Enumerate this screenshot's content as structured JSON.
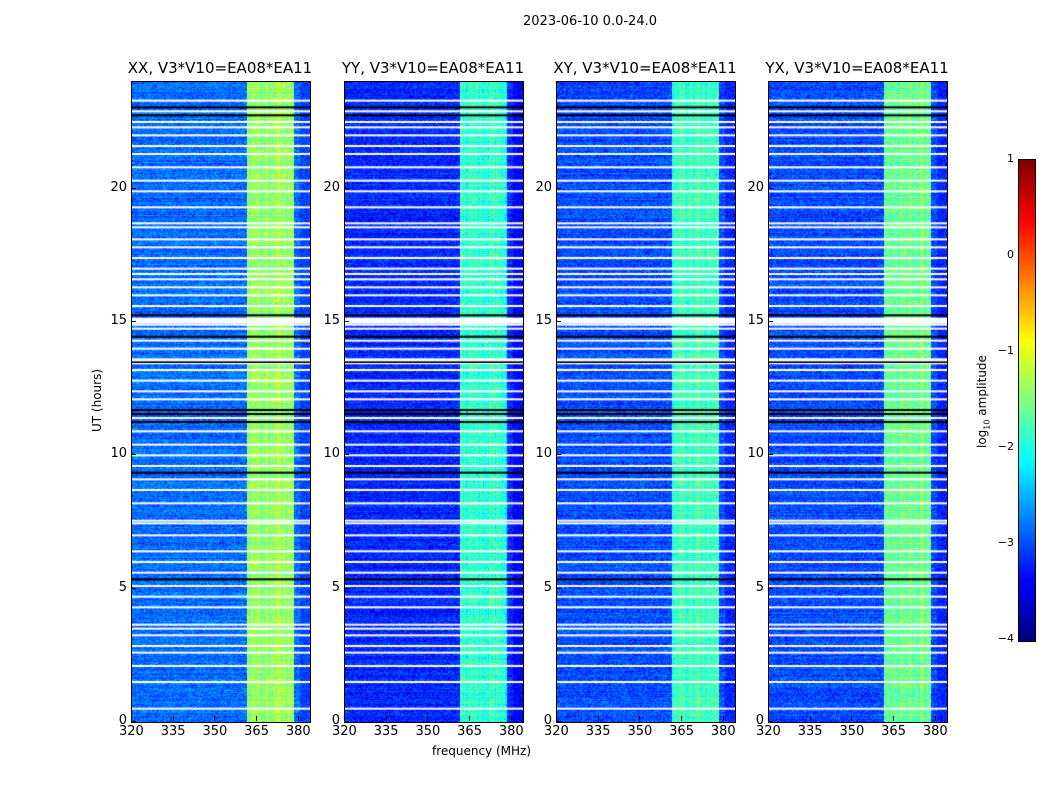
{
  "chart_data": {
    "type": "heatmap",
    "title": "2023-06-10 0.0-24.0",
    "xlabel": "frequency (MHz)",
    "ylabel": "UT (hours)",
    "xlim": [
      320,
      384
    ],
    "ylim": [
      0,
      24
    ],
    "xticks": [
      "320",
      "335",
      "350",
      "365",
      "380"
    ],
    "yticks": [
      "0",
      "5",
      "10",
      "15",
      "20"
    ],
    "panels": [
      {
        "title": "XX, V3*V10=EA08*EA11",
        "base_log": -2.85,
        "band_log": -1.4
      },
      {
        "title": "YY, V3*V10=EA08*EA11",
        "base_log": -3.2,
        "band_log": -1.9
      },
      {
        "title": "XY, V3*V10=EA08*EA11",
        "base_log": -3.0,
        "band_log": -1.8
      },
      {
        "title": "YX, V3*V10=EA08*EA11",
        "base_log": -3.0,
        "band_log": -1.6
      }
    ],
    "band_MHz": [
      361,
      378
    ],
    "flagged_hours_white": [
      0.5,
      1.5,
      2.1,
      2.6,
      2.85,
      3.25,
      3.5,
      3.65,
      4.3,
      4.7,
      5.1,
      5.6,
      6.0,
      6.4,
      7.0,
      7.45,
      7.55,
      8.2,
      8.7,
      9.1,
      9.6,
      10.0,
      10.4,
      10.9,
      11.4,
      12.1,
      12.4,
      12.8,
      13.2,
      13.45,
      14.0,
      14.3,
      14.75,
      14.9,
      15.05,
      15.6,
      16.0,
      16.3,
      16.6,
      16.8,
      17.0,
      17.4,
      17.8,
      18.1,
      18.55,
      18.7,
      19.3,
      19.9,
      20.3,
      20.8,
      21.3,
      21.6,
      22.0,
      22.3,
      22.5,
      22.9,
      23.3
    ],
    "flagged_hours_black": [
      5.35,
      9.35,
      11.25,
      11.55,
      11.7,
      13.5,
      14.45,
      15.25,
      22.75,
      23.05
    ],
    "colorbar": {
      "label": "log10 amplitude",
      "min": -4,
      "max": 1,
      "ticks": [
        "1",
        "0",
        "−1",
        "−2",
        "−3",
        "−4"
      ],
      "colormap": "jet"
    }
  }
}
